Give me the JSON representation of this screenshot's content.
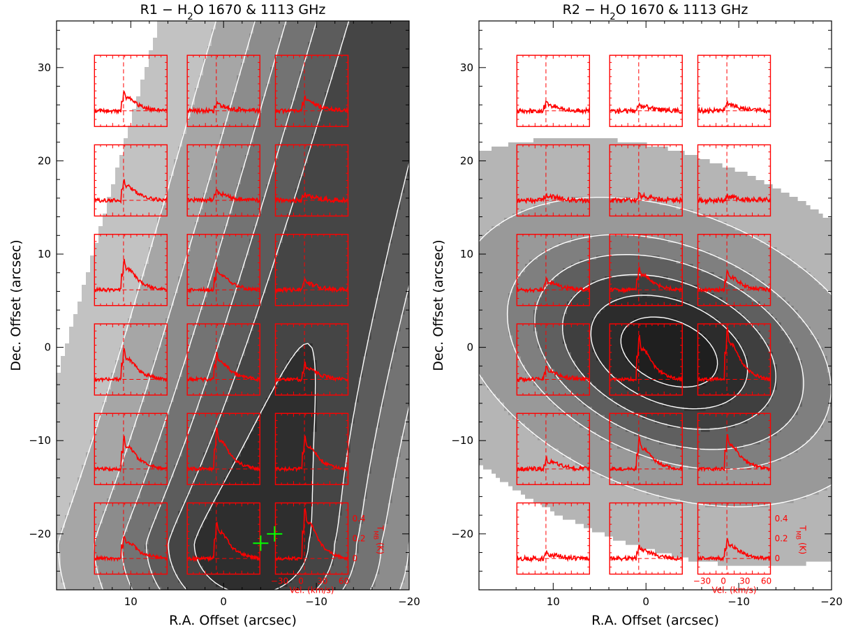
{
  "colors": {
    "spectrum": "#ff0000",
    "contour_line": "#ffffff",
    "source_marker": "#00ff00",
    "frame": "#000000"
  },
  "chart_data": [
    {
      "type": "contour_map_with_spectra",
      "title_prefix": "R1 − H",
      "title_sub": "2",
      "title_suffix": "O 1670 & 1113 GHz",
      "xlabel": "R.A. Offset (arcsec)",
      "ylabel": "Dec. Offset (arcsec)",
      "xlim": [
        18,
        -20
      ],
      "ylim": [
        -26,
        35
      ],
      "x_ticks": [
        10,
        0,
        -10,
        -20
      ],
      "y_ticks": [
        30,
        20,
        10,
        0,
        -10,
        -20
      ],
      "grid_x": [
        10,
        0,
        -9.5
      ],
      "grid_y": [
        27.5,
        17.9,
        8.3,
        -1.3,
        -10.9,
        -20.5
      ],
      "peak": {
        "x": -3,
        "y": -21
      },
      "sigma": {
        "x": 9,
        "y": 8
      },
      "field_angle_deg": 0,
      "stretch": {
        "y": 3.4,
        "x_at_top": -14
      },
      "contour_levels": [
        0.14,
        0.3,
        0.45,
        0.58,
        0.7,
        0.8,
        0.9
      ],
      "field_gamma": 0.45,
      "gray_fills": [
        "#c2c2c2",
        "#a6a6a6",
        "#8c8c8c",
        "#737373",
        "#5c5c5c",
        "#454545",
        "#2e2e2e",
        "#1a1a1a"
      ],
      "markers": [
        {
          "x": -4,
          "y": -21
        },
        {
          "x": -5.5,
          "y": -20
        }
      ],
      "spectra_amp": [
        [
          0.9,
          0.4,
          0.7
        ],
        [
          1.0,
          0.45,
          0.3
        ],
        [
          1.5,
          1.1,
          0.45
        ],
        [
          1.5,
          1.3,
          0.8
        ],
        [
          1.6,
          2.0,
          1.6
        ],
        [
          1.2,
          1.9,
          2.6
        ]
      ],
      "spectrum_axes": {
        "x_ticks": [
          "−30",
          "0",
          "30",
          "60"
        ],
        "y_ticks": [
          "0",
          "0.2",
          "0.4"
        ],
        "xlabel": "Vel. (km/s)",
        "ylabel_prefix": "T",
        "ylabel_sub": "MB",
        "ylabel_suffix": " (K)"
      }
    },
    {
      "type": "contour_map_with_spectra",
      "title_prefix": "R2 − H",
      "title_sub": "2",
      "title_suffix": "O 1670 & 1113 GHz",
      "xlabel": "R.A. Offset (arcsec)",
      "ylabel": "Dec. Offset (arcsec)",
      "xlim": [
        18,
        -20
      ],
      "ylim": [
        -26,
        35
      ],
      "x_ticks": [
        10,
        0,
        -10,
        -20
      ],
      "y_ticks": [
        30,
        20,
        10,
        0,
        -10,
        -20
      ],
      "grid_x": [
        10,
        0,
        -9.5
      ],
      "grid_y": [
        27.5,
        17.9,
        8.3,
        -1.3,
        -10.9,
        -20.5
      ],
      "peak": {
        "x": -2.5,
        "y": -0.5
      },
      "sigma": {
        "x": 12,
        "y": 7.5
      },
      "field_angle_deg": -22,
      "stretch": {
        "y": 0,
        "x_at_top": 0
      },
      "contour_levels": [
        0.1,
        0.3,
        0.5,
        0.62,
        0.74,
        0.85,
        0.94
      ],
      "field_gamma": 0.6,
      "gray_fills": [
        "#b5b5b5",
        "#999999",
        "#7f7f7f",
        "#5f5f5f",
        "#3f3f3f",
        "#2c2c2c",
        "#1f1f1f",
        "#0f0f0f"
      ],
      "markers": [],
      "spectra_amp": [
        [
          0.4,
          0.3,
          0.4
        ],
        [
          0.25,
          0.3,
          0.2
        ],
        [
          0.55,
          1.1,
          0.9
        ],
        [
          0.6,
          2.2,
          2.6
        ],
        [
          0.5,
          1.5,
          1.7
        ],
        [
          0.3,
          0.6,
          0.9
        ]
      ],
      "spectrum_axes": {
        "x_ticks": [
          "−30",
          "0",
          "30",
          "60"
        ],
        "y_ticks": [
          "0",
          "0.2",
          "0.4"
        ],
        "xlabel": "Vel. (km/s)",
        "ylabel_prefix": "T",
        "ylabel_sub": "MB",
        "ylabel_suffix": " (K)"
      }
    }
  ]
}
